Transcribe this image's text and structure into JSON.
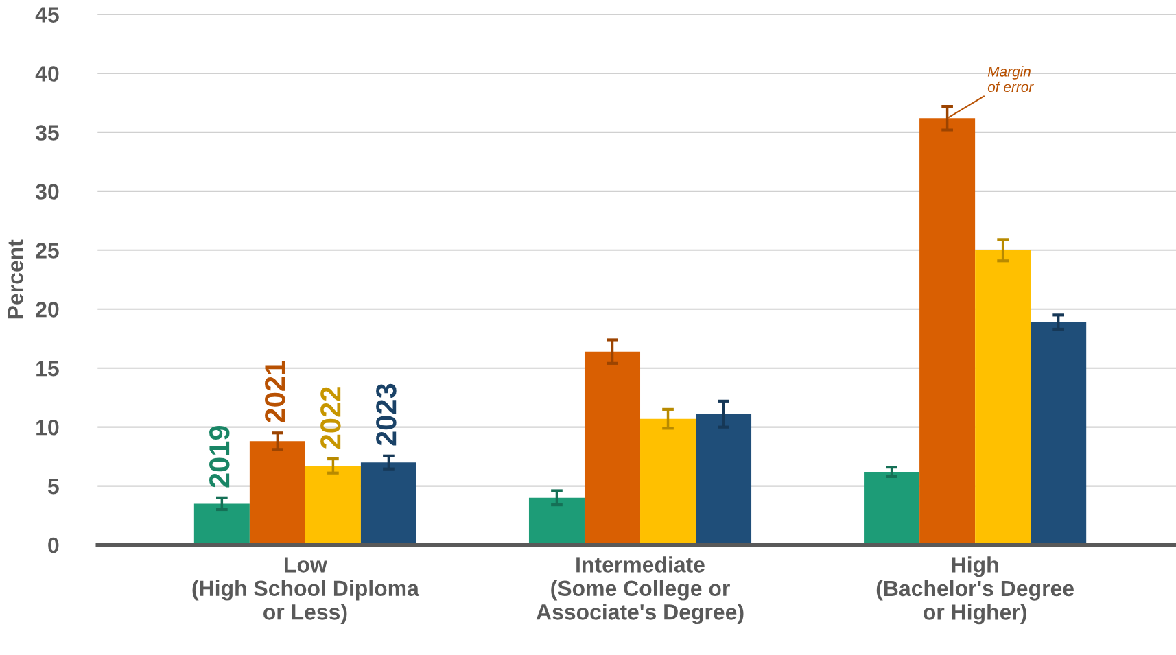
{
  "chart_data": {
    "type": "bar",
    "ylabel": "Percent",
    "categories": [
      "Low\n(High School Diploma\nor Less)",
      "Intermediate\n(Some College or\nAssociate's Degree)",
      "High\n(Bachelor's Degree\nor Higher)"
    ],
    "series": [
      {
        "name": "2019",
        "color": "#1d9c77",
        "values": [
          3.5,
          4.0,
          6.2
        ],
        "errors": [
          0.5,
          0.6,
          0.4
        ]
      },
      {
        "name": "2021",
        "color": "#d95f02",
        "values": [
          8.8,
          16.4,
          36.2
        ],
        "errors": [
          0.7,
          1.0,
          1.0
        ]
      },
      {
        "name": "2022",
        "color": "#ffc000",
        "values": [
          6.7,
          10.7,
          25.0
        ],
        "errors": [
          0.6,
          0.8,
          0.9
        ]
      },
      {
        "name": "2023",
        "color": "#1f4e79",
        "values": [
          7.0,
          11.1,
          18.9
        ],
        "errors": [
          0.55,
          1.1,
          0.6
        ]
      }
    ],
    "ylim": [
      0,
      45
    ],
    "yticks": [
      0,
      5,
      10,
      15,
      20,
      25,
      30,
      35,
      40,
      45
    ],
    "grid": "y",
    "legend": false,
    "annotations": [
      {
        "text": "Margin\nof error",
        "x": "High\n(Bachelor's Degree\nor Higher)",
        "y": 36.2
      }
    ]
  }
}
